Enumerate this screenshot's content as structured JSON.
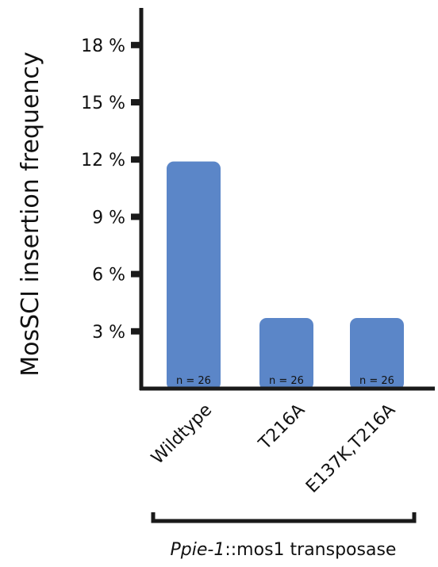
{
  "chart_data": {
    "type": "bar",
    "categories": [
      "Wildtype",
      "T216A",
      "E137K,T216A"
    ],
    "values": [
      11.9,
      3.7,
      3.7
    ],
    "value_unit": "%",
    "n_labels": [
      "n = 26",
      "n = 26",
      "n = 26"
    ],
    "ylabel": "MosSCI insertion frequency",
    "yticks": [
      3,
      6,
      9,
      12,
      15,
      18
    ],
    "ytick_labels": [
      "3 %",
      "6 %",
      "9 %",
      "12 %",
      "15 %",
      "18 %"
    ],
    "ylim": [
      0,
      20
    ],
    "grid": false,
    "bar_color": "#5b86c8",
    "group_label_italic": "Ppie-1",
    "group_label_rest": "::mos1 transposase"
  }
}
